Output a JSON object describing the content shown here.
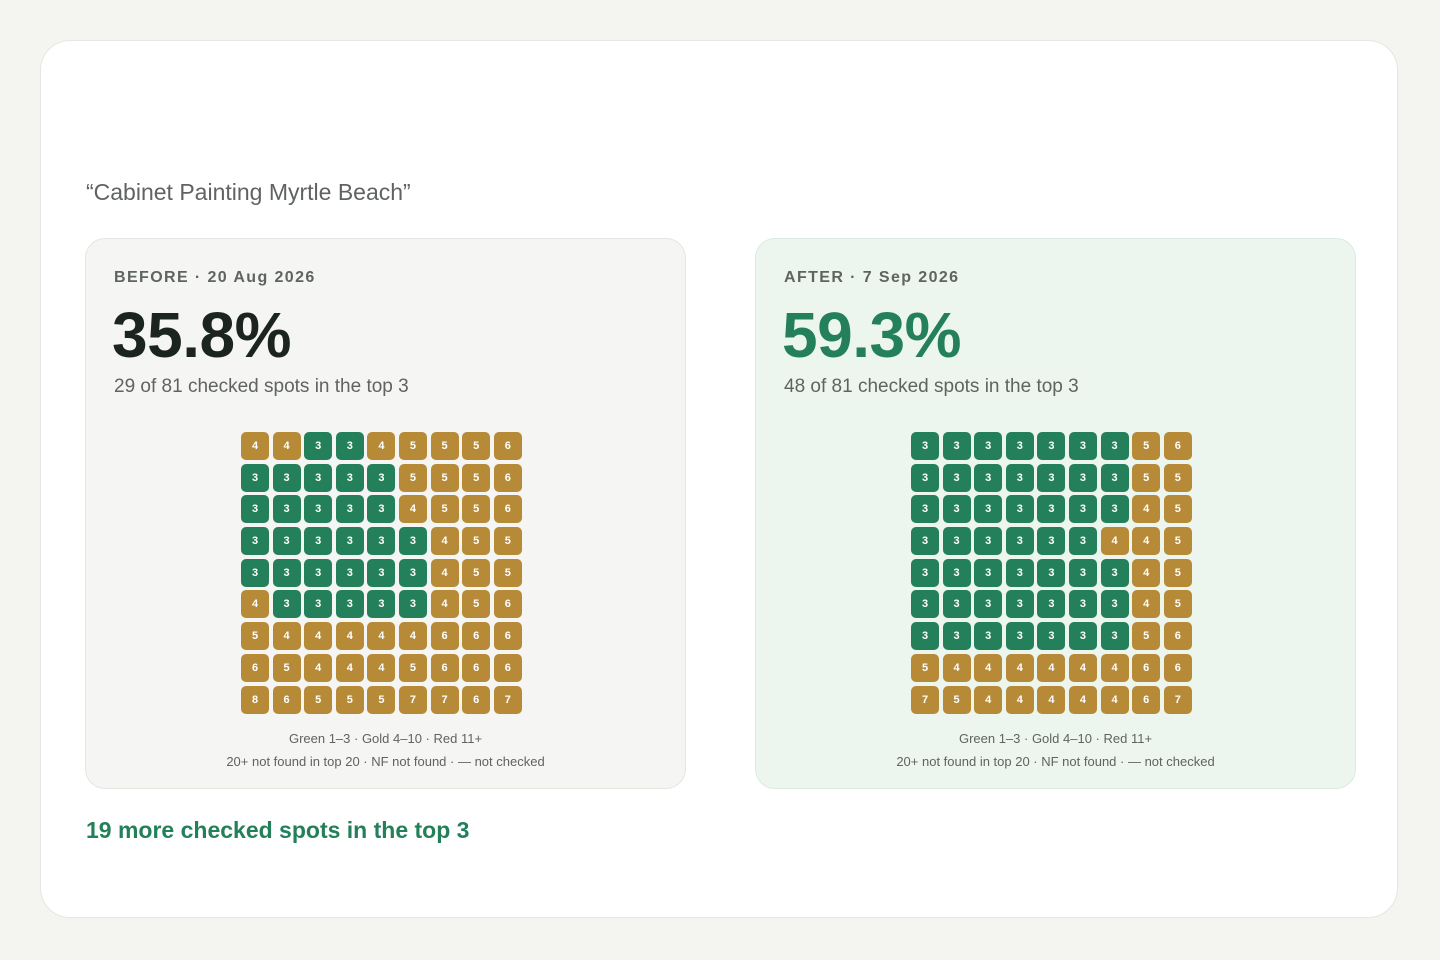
{
  "keyword": "“Cabinet Painting Myrtle Beach”",
  "colors": {
    "green": "#23805a",
    "gold": "#b68a36",
    "red": "#c0392b"
  },
  "before": {
    "label": "BEFORE · 20 Aug 2026",
    "percent": "35.8%",
    "subtext": "29 of 81 checked spots in the top 3",
    "legend_line1": "Green 1–3 · Gold 4–10 · Red 11+",
    "legend_line2": "20+ not found in top 20 · NF not found · — not checked",
    "grid": [
      [
        4,
        4,
        3,
        3,
        4,
        5,
        5,
        5,
        6
      ],
      [
        3,
        3,
        3,
        3,
        3,
        5,
        5,
        5,
        6
      ],
      [
        3,
        3,
        3,
        3,
        3,
        4,
        5,
        5,
        6
      ],
      [
        3,
        3,
        3,
        3,
        3,
        3,
        4,
        5,
        5
      ],
      [
        3,
        3,
        3,
        3,
        3,
        3,
        4,
        5,
        5
      ],
      [
        4,
        3,
        3,
        3,
        3,
        3,
        4,
        5,
        6
      ],
      [
        5,
        4,
        4,
        4,
        4,
        4,
        6,
        6,
        6
      ],
      [
        6,
        5,
        4,
        4,
        4,
        5,
        6,
        6,
        6
      ],
      [
        8,
        6,
        5,
        5,
        5,
        7,
        7,
        6,
        7
      ]
    ]
  },
  "after": {
    "label": "AFTER · 7 Sep 2026",
    "percent": "59.3%",
    "subtext": "48 of 81 checked spots in the top 3",
    "legend_line1": "Green 1–3 · Gold 4–10 · Red 11+",
    "legend_line2": "20+ not found in top 20 · NF not found · — not checked",
    "grid": [
      [
        3,
        3,
        3,
        3,
        3,
        3,
        3,
        5,
        6
      ],
      [
        3,
        3,
        3,
        3,
        3,
        3,
        3,
        5,
        5
      ],
      [
        3,
        3,
        3,
        3,
        3,
        3,
        3,
        4,
        5
      ],
      [
        3,
        3,
        3,
        3,
        3,
        3,
        4,
        4,
        5
      ],
      [
        3,
        3,
        3,
        3,
        3,
        3,
        3,
        4,
        5
      ],
      [
        3,
        3,
        3,
        3,
        3,
        3,
        3,
        4,
        5
      ],
      [
        3,
        3,
        3,
        3,
        3,
        3,
        3,
        5,
        6
      ],
      [
        5,
        4,
        4,
        4,
        4,
        4,
        4,
        6,
        6
      ],
      [
        7,
        5,
        4,
        4,
        4,
        4,
        4,
        6,
        7
      ]
    ]
  },
  "summary": "19 more checked spots in the top 3"
}
